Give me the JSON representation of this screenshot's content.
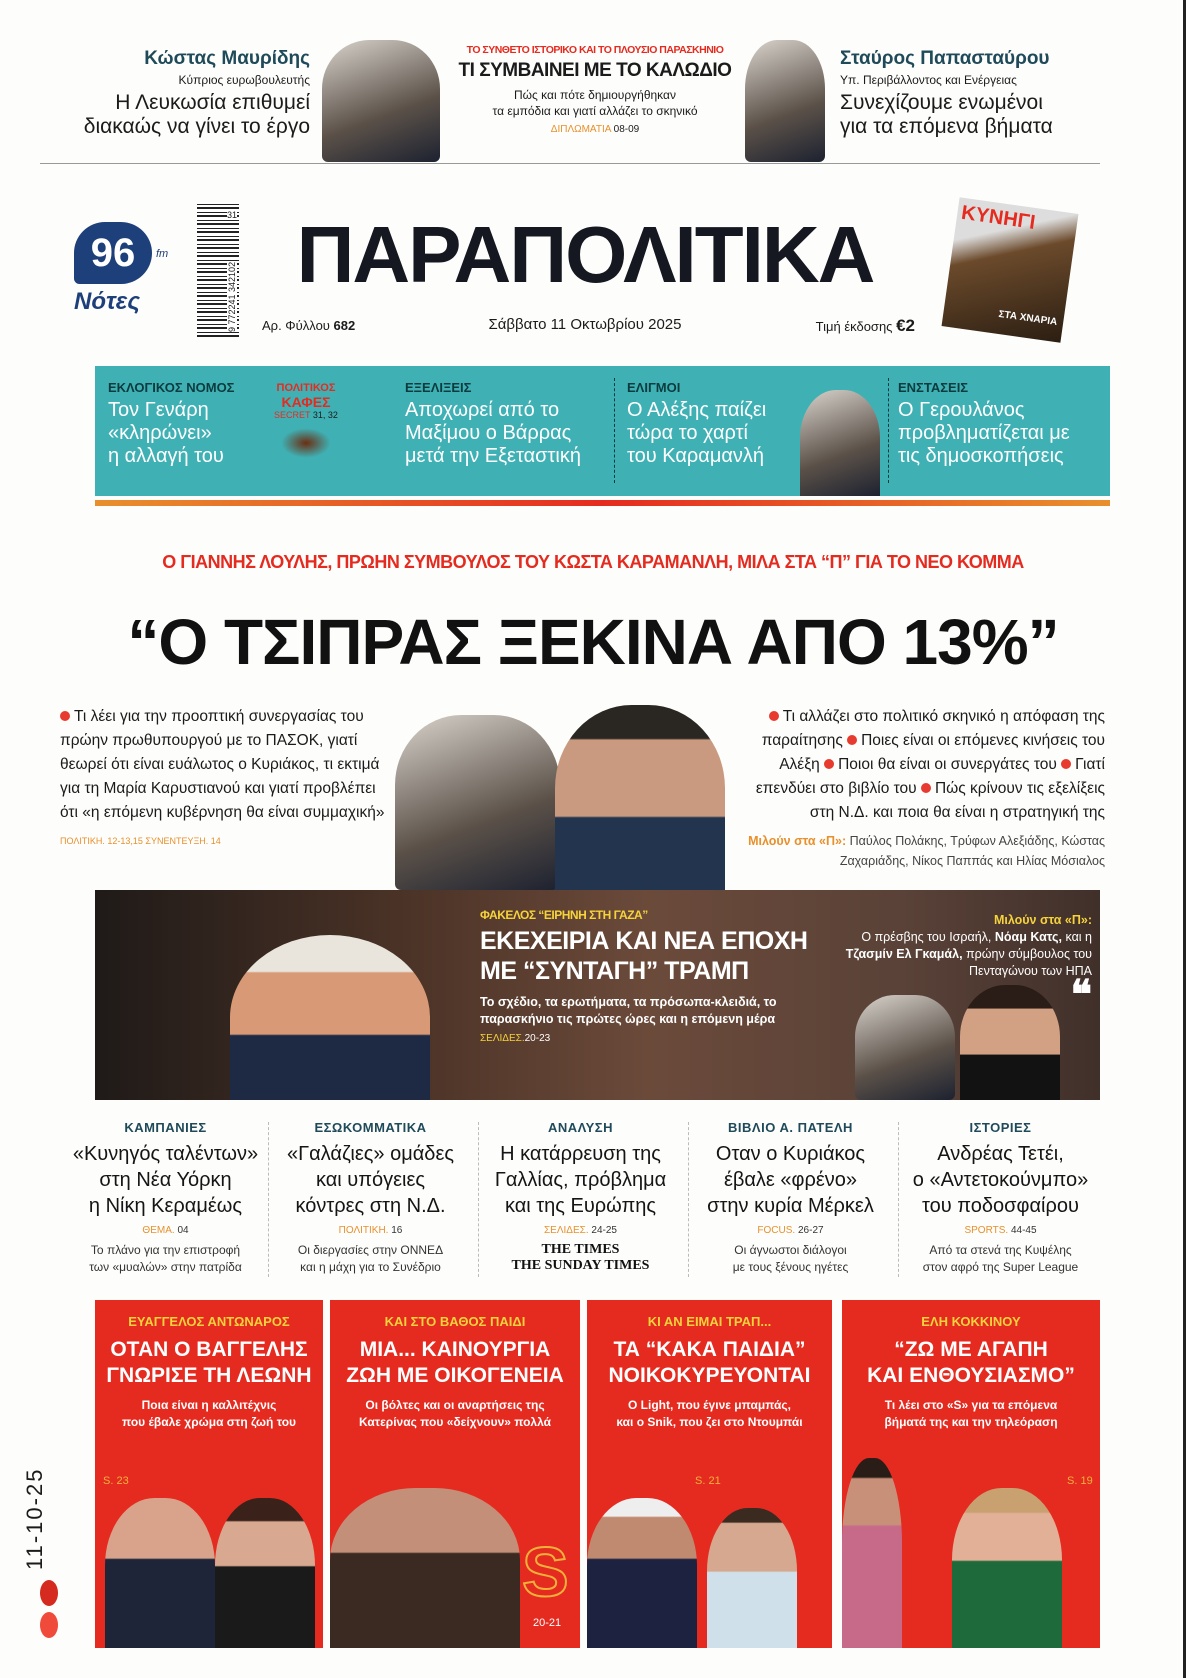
{
  "top": {
    "left": {
      "name": "Κώστας Μαυρίδης",
      "role": "Κύπριος ευρωβουλευτής",
      "quote_1": "Η Λευκωσία επιθυμεί",
      "quote_2": "διακαώς να γίνει το έργο"
    },
    "center": {
      "kicker": "ΤΟ ΣΥΝΘΕΤΟ ΙΣΤΟΡΙΚΟ ΚΑΙ ΤΟ ΠΛΟΥΣΙΟ ΠΑΡΑΣΚΗΝΙΟ",
      "title": "ΤΙ ΣΥΜΒΑΙΝΕΙ ΜΕ ΤΟ ΚΑΛΩΔΙΟ",
      "sub_1": "Πώς και πότε δημιουργήθηκαν",
      "sub_2": "τα εμπόδια και γιατί αλλάζει το σκηνικό",
      "section": "ΔΙΠΛΩΜΑΤΙΑ",
      "pages": "08-09"
    },
    "right": {
      "name": "Σταύρος Παπασταύρου",
      "role": "Υπ. Περιβάλλοντος και Ενέργειας",
      "quote_1": "Συνεχίζουμε ενωμένοι",
      "quote_2": "για τα επόμενα βήματα"
    }
  },
  "masthead": {
    "title": "ΠΑΡΑΠΟΛΙΤΙΚΑ",
    "radio_logo": "96",
    "radio_fm": "fm",
    "radio_name": "Νότες",
    "barcode_digits": "9 772241 342102",
    "barcode_issue": "31",
    "issue_label": "Αρ. Φύλλου",
    "issue_number": "682",
    "date": "Σάββατο 11 Οκτωβρίου 2025",
    "price_label": "Τιμή έκδοσης",
    "price": "€2",
    "magazine_title": "ΚΥΝΗΓΙ",
    "magazine_cover": "ΣΤΑ ΧΝΑΡΙΑ"
  },
  "teal_band": {
    "color": "#3fb1b5",
    "items": [
      {
        "kicker": "ΕΚΛΟΓΙΚΟΣ ΝΟΜΟΣ",
        "lines": [
          "Τον Γενάρη",
          "«κληρώνει»",
          "η αλλαγή του"
        ]
      },
      {
        "kicker": "ΕΞΕΛΙΞΕΙΣ",
        "lines": [
          "Αποχωρεί από το",
          "Μαξίμου ο Βάρρας",
          "μετά την Εξεταστική"
        ]
      },
      {
        "kicker": "ΕΛΙΓΜΟΙ",
        "lines": [
          "Ο Αλέξης παίζει",
          "τώρα το χαρτί",
          "του Καραμανλή"
        ]
      },
      {
        "kicker": "ΕΝΣΤΑΣΕΙΣ",
        "lines": [
          "Ο Γερουλάνος",
          "προβληματίζεται με",
          "τις δημοσκοπήσεις"
        ]
      }
    ],
    "cafe": {
      "title_1": "ΠΟΛΙΤΙΚΟΣ",
      "title_2": "ΚΑΦΕΣ",
      "section": "SECRET",
      "pages": "31, 32"
    }
  },
  "lead": {
    "kicker": "Ο ΓΙΑΝΝΗΣ ΛΟΥΛΗΣ, ΠΡΩΗΝ ΣΥΜΒΟΥΛΟΣ ΤΟΥ ΚΩΣΤΑ ΚΑΡΑΜΑΝΛΗ, ΜΙΛΑ ΣΤΑ “Π” ΓΙΑ ΤΟ ΝΕΟ ΚΟΜΜΑ",
    "headline": "“Ο ΤΣΙΠΡΑΣ ΞΕΚΙΝΑ ΑΠΟ 13%”",
    "left_text": "Τι λέει για την προοπτική συνεργασίας του πρώην πρωθυπουργού με το ΠΑΣΟΚ, γιατί θεωρεί ότι είναι ευάλωτος ο Κυριάκος, τι εκτιμά για τη Μαρία Καρυστιανού και γιατί προβλέπει ότι «η επόμενη κυβέρνηση θα είναι συμμαχική»",
    "left_refs": "ΠΟΛΙΤΙΚΗ. 12-13,15  ΣΥΝΕΝΤΕΥΞΗ. 14",
    "right_bullets": [
      "Τι αλλάζει στο πολιτικό σκηνικό η απόφαση της παραίτησης",
      "Ποιες είναι οι επόμενες κινήσεις του Αλέξη",
      "Ποιοι θα είναι οι συνεργάτες του",
      "Γιατί επενδύει στο βιβλίο του",
      "Πώς κρίνουν τις εξελίξεις στη Ν.Δ. και ποια θα είναι η στρατηγική της"
    ],
    "speakers_label": "Μιλούν στα «Π»:",
    "speakers": "Παύλος Πολάκης, Τρύφων Αλεξιάδης, Κώστας Ζαχαριάδης, Νίκος Παππάς και Ηλίας Μόσιαλος"
  },
  "gaza": {
    "kicker": "ΦΑΚΕΛΟΣ “ΕΙΡΗΝΗ ΣΤΗ ΓΑΖΑ”",
    "title_1": "ΕΚΕΧΕΙΡΙΑ ΚΑΙ ΝΕΑ ΕΠΟΧΗ",
    "title_2": "ΜΕ “ΣΥΝΤΑΓΗ” ΤΡΑΜΠ",
    "text": "Το σχέδιο, τα ερωτήματα, τα πρόσωπα-κλειδιά, το παρασκήνιο τις πρώτες ώρες και η επόμενη μέρα",
    "pages_label": "ΣΕΛΙΔΕΣ.",
    "pages": "20-23",
    "speakers_label": "Μιλούν στα «Π»:",
    "speakers_pre": "Ο πρέσβης του Ισραήλ,",
    "speaker_1": "Νόαμ Κατς,",
    "speakers_mid": "και η",
    "speaker_2": "Τζασμίν Ελ Γκαμάλ,",
    "speakers_post": "πρώην σύμβουλος του Πενταγώνου των ΗΠΑ"
  },
  "columns": [
    {
      "kicker": "ΚΑΜΠΑΝΙΕΣ",
      "lines": [
        "«Κυνηγός ταλέντων»",
        "στη Νέα Υόρκη",
        "η Νίκη Κεραμέως"
      ],
      "section": "ΘΕΜΑ.",
      "pages": "04",
      "summary": [
        "Το πλάνο για την επιστροφή",
        "των «μυαλών» στην πατρίδα"
      ]
    },
    {
      "kicker": "ΕΣΩΚΟΜΜΑΤΙΚΑ",
      "lines": [
        "«Γαλάζιες» ομάδες",
        "και υπόγειες",
        "κόντρες στη Ν.Δ."
      ],
      "section": "ΠΟΛΙΤΙΚΗ.",
      "pages": "16",
      "summary": [
        "Οι διεργασίες στην ΟΝΝΕΔ",
        "και η μάχη για το Συνέδριο"
      ]
    },
    {
      "kicker": "ΑΝΑΛΥΣΗ",
      "lines": [
        "Η κατάρρευση της",
        "Γαλλίας, πρόβλημα",
        "και της Ευρώπης"
      ],
      "section": "ΣΕΛΙΔΕΣ.",
      "pages": "24-25",
      "summary": [
        "THE TIMES",
        "THE SUNDAY TIMES"
      ]
    },
    {
      "kicker": "ΒΙΒΛΙΟ Α. ΠΑΤΕΛΗ",
      "lines": [
        "Οταν ο Κυριάκος",
        "έβαλε «φρένο»",
        "στην κυρία Μέρκελ"
      ],
      "section": "FOCUS.",
      "pages": "26-27",
      "summary": [
        "Οι άγνωστοι διάλογοι",
        "με τους ξένους ηγέτες"
      ]
    },
    {
      "kicker": "ΙΣΤΟΡΙΕΣ",
      "lines": [
        "Ανδρέας Τετέι,",
        "ο «Αντετοκούνμπο»",
        "του ποδοσφαίρου"
      ],
      "section": "SPORTS.",
      "pages": "44-45",
      "summary": [
        "Από τα στενά της Κυψέλης",
        "στον αφρό της Super League"
      ]
    }
  ],
  "red_boxes": [
    {
      "kicker": "ΕΥΑΓΓΕΛΟΣ ΑΝΤΩΝΑΡΟΣ",
      "title": [
        "ΟΤΑΝ Ο ΒΑΓΓΕΛΗΣ",
        "ΓΝΩΡΙΣΕ ΤΗ ΛΕΩΝΗ"
      ],
      "text": [
        "Ποια είναι η καλλιτέχνις",
        "που έβαλε χρώμα στη ζωή του"
      ],
      "page": "S. 23"
    },
    {
      "kicker": "ΚΑΙ ΣΤΟ ΒΑΘΟΣ ΠΑΙΔΙ",
      "title": [
        "ΜΙΑ... ΚΑΙΝΟΥΡΓΙΑ",
        "ΖΩΗ ΜΕ ΟΙΚΟΓΕΝΕΙΑ"
      ],
      "text": [
        "Οι βόλτες και οι αναρτήσεις της",
        "Κατερίνας που «δείχνουν» πολλά"
      ],
      "page": "20-21",
      "logo": "S"
    },
    {
      "kicker": "ΚΙ ΑΝ ΕΙΜΑΙ ΤΡΑΠ...",
      "title": [
        "ΤΑ “ΚΑΚΑ ΠΑΙΔΙΑ”",
        "ΝΟΙΚΟΚΥΡΕΥΟΝΤΑΙ"
      ],
      "text": [
        "Ο Light, που έγινε μπαμπάς,",
        "και ο Snik, που ζει στο Ντουμπάι"
      ],
      "page": "S. 21"
    },
    {
      "kicker": "ΕΛΗ ΚΟΚΚΙΝΟΥ",
      "title": [
        "“ΖΩ ΜΕ ΑΓΑΠΗ",
        "ΚΑΙ ΕΝΘΟΥΣΙΑΣΜΟ”"
      ],
      "text": [
        "Τι λέει στο «S» για τα επόμενα",
        "βήματά της και την τηλεόραση"
      ],
      "page": "S. 19"
    }
  ],
  "side_date": "11-10-25",
  "colors": {
    "red": "#e52b20",
    "teal": "#3fb1b5",
    "dark": "#1b1b1b",
    "accent_orange": "#e8902c"
  }
}
